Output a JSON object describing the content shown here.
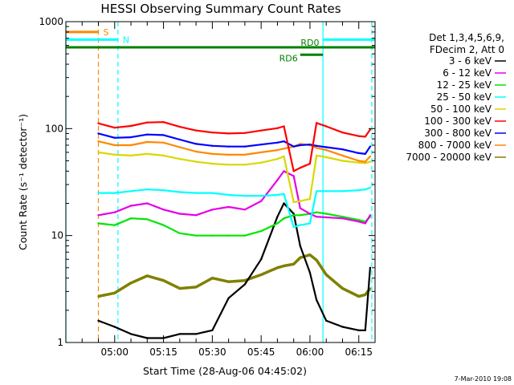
{
  "chart_data": {
    "type": "line",
    "title": "HESSI Observing Summary Count Rates",
    "xlabel": "Start Time (28-Aug-06 04:45:02)",
    "ylabel": "Count Rate (s⁻¹ detector⁻¹)",
    "yscale": "log",
    "ylim": [
      1,
      1000
    ],
    "xlim_min": [
      285,
      380
    ],
    "x_ticks": [
      "05:00",
      "05:15",
      "05:30",
      "05:45",
      "06:00",
      "06:15"
    ],
    "x_tick_min": [
      300,
      315,
      330,
      345,
      360,
      375
    ],
    "y_ticks": [
      "1",
      "10",
      "100",
      "1000"
    ],
    "y_tick_values": [
      1,
      10,
      100,
      1000
    ],
    "legend_header": [
      "Det 1,3,4,5,6,9,",
      "FDecim 2, Att 0"
    ],
    "legend_placement": "right, outside plot",
    "timestamp": "7-Mar-2010 19:08",
    "x_min": [
      295,
      300,
      305,
      310,
      315,
      320,
      325,
      330,
      335,
      340,
      345,
      350,
      352,
      355,
      357,
      360,
      362,
      365,
      370,
      375,
      377,
      378.5
    ],
    "series": [
      {
        "name": "3 - 6 keV",
        "color": "#000000",
        "values": [
          1.6,
          1.4,
          1.2,
          1.1,
          1.1,
          1.2,
          1.2,
          1.3,
          2.6,
          3.5,
          6,
          15,
          20,
          16,
          8,
          4.5,
          2.5,
          1.6,
          1.4,
          1.3,
          1.3,
          5
        ]
      },
      {
        "name": "6 - 12 keV",
        "color": "#e600e6",
        "values": [
          15.5,
          16.5,
          19,
          20,
          17.5,
          16,
          15.5,
          17.5,
          18.5,
          17.5,
          21,
          33,
          40,
          36,
          18,
          16,
          15,
          14.8,
          14.5,
          13.5,
          13,
          15.5
        ]
      },
      {
        "name": "12 - 25 keV",
        "color": "#00e600",
        "values": [
          13,
          12.5,
          14.5,
          14.2,
          12.5,
          10.5,
          10,
          10,
          10,
          10,
          11,
          13,
          14.5,
          15.5,
          15.5,
          16,
          16.5,
          16,
          15,
          14,
          13.5,
          15
        ]
      },
      {
        "name": "25 - 50 keV",
        "color": "#00ffff",
        "values": [
          25,
          25,
          26,
          27,
          26.5,
          25.5,
          25,
          25,
          24,
          23.5,
          23.5,
          24,
          24.5,
          12,
          12.5,
          13,
          26,
          26,
          26,
          26.5,
          27,
          28
        ]
      },
      {
        "name": "50 - 100 keV",
        "color": "#d8d800",
        "values": [
          60,
          57,
          56,
          58,
          56,
          52,
          49,
          47,
          46,
          46,
          48,
          52,
          55,
          20.5,
          21,
          22,
          56,
          54,
          50,
          48,
          47.5,
          49
        ]
      },
      {
        "name": "100 - 300 keV",
        "color": "#ff0000",
        "values": [
          112,
          102,
          106,
          114,
          115,
          104,
          96,
          92,
          90,
          91,
          96,
          101,
          105,
          40,
          43,
          47,
          113,
          105,
          92,
          85,
          84,
          98
        ]
      },
      {
        "name": "300 - 800 keV",
        "color": "#0000ff",
        "values": [
          90,
          82,
          83,
          88,
          87,
          79,
          72,
          69,
          68,
          68,
          71,
          74,
          76,
          68,
          70,
          71,
          69,
          67,
          64,
          59,
          58,
          68
        ]
      },
      {
        "name": "800 - 7000 keV",
        "color": "#ff8800",
        "values": [
          76,
          70,
          70,
          75,
          74,
          67,
          61,
          58,
          57,
          57,
          60,
          63,
          65,
          68,
          72,
          70,
          66,
          63,
          56,
          50,
          49,
          55
        ]
      },
      {
        "name": "7000 - 20000 keV",
        "color": "#808000",
        "values": [
          2.7,
          2.9,
          3.6,
          4.2,
          3.8,
          3.2,
          3.3,
          4,
          3.7,
          3.8,
          4.3,
          5,
          5.2,
          5.4,
          6.2,
          6.6,
          5.9,
          4.3,
          3.2,
          2.7,
          2.8,
          3.2
        ]
      }
    ],
    "annotations": {
      "flags": [
        {
          "label": "S",
          "color": "#ff8800",
          "level": 800,
          "x_start_min": 285,
          "x_end_min": 295
        },
        {
          "label": "N",
          "color": "#00ffff",
          "level": 680,
          "x_start_min": 285,
          "x_end_min": 301,
          "x_resume_min": 364
        },
        {
          "label": "RD0",
          "color": "#008000",
          "level": 575,
          "x_start_min": 285,
          "x_end_min": 380
        },
        {
          "label": "RD6",
          "color": "#008000",
          "level": 490,
          "x_start_min": 357,
          "x_end_min": 364
        }
      ],
      "vlines": [
        {
          "x_min": 285,
          "color": "#00ffff",
          "dashed": false
        },
        {
          "x_min": 295,
          "color": "#ff8800",
          "dashed": true
        },
        {
          "x_min": 301,
          "color": "#00ffff",
          "dashed": true
        },
        {
          "x_min": 364,
          "color": "#00ffff",
          "dashed": false
        },
        {
          "x_min": 379,
          "color": "#00ffff",
          "dashed": true
        }
      ]
    }
  }
}
